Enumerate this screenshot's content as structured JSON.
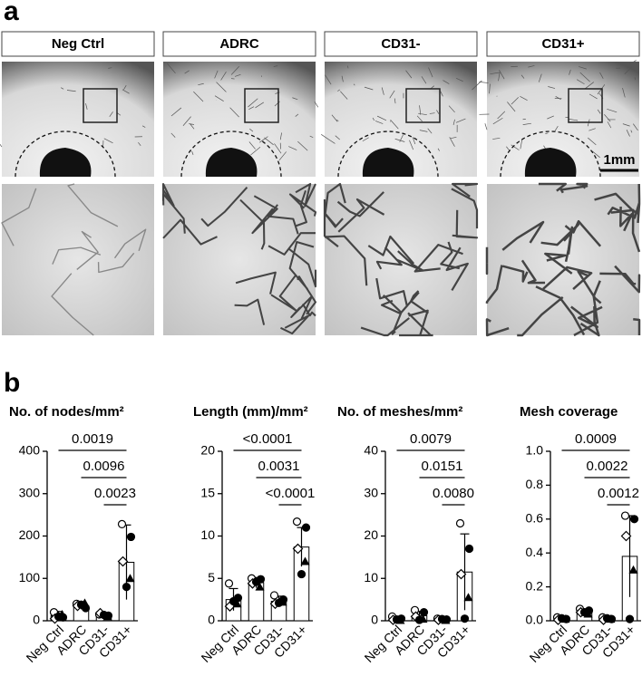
{
  "panel_labels": [
    "a",
    "b"
  ],
  "image_panel": {
    "groups": [
      "Neg Ctrl",
      "ADRC",
      "CD31-",
      "CD31+"
    ],
    "scale_bar": "1mm"
  },
  "chart_data": [
    {
      "type": "bar",
      "title": "No. of nodes/mm²",
      "categories": [
        "Neg Ctrl",
        "ADRC",
        "CD31-",
        "CD31+"
      ],
      "values": [
        12,
        35,
        15,
        138
      ],
      "errors": [
        10,
        8,
        5,
        88
      ],
      "points": [
        [
          20,
          8,
          5,
          15,
          10
        ],
        [
          40,
          30,
          35,
          42,
          38
        ],
        [
          15,
          12,
          18,
          10,
          14
        ],
        [
          228,
          198,
          140,
          100,
          80
        ]
      ],
      "ylim": [
        0,
        400
      ],
      "yticks": [
        0,
        100,
        200,
        300,
        400
      ],
      "annotations": [
        "0.0019",
        "0.0096",
        "0.0023"
      ]
    },
    {
      "type": "bar",
      "title": "Length (mm)/mm²",
      "categories": [
        "Neg Ctrl",
        "ADRC",
        "CD31-",
        "CD31+"
      ],
      "values": [
        2.5,
        4.5,
        2.3,
        8.7
      ],
      "errors": [
        1.3,
        0.6,
        0.6,
        2.3
      ],
      "points": [
        [
          4.4,
          2.7,
          1.7,
          2.0,
          2.3
        ],
        [
          5.0,
          4.9,
          4.4,
          4.0,
          4.6
        ],
        [
          3.0,
          2.5,
          2.0,
          2.2,
          2.1
        ],
        [
          11.7,
          11.0,
          8.5,
          7.0,
          5.5
        ]
      ],
      "ylim": [
        0,
        20
      ],
      "yticks": [
        0,
        5,
        10,
        15,
        20
      ],
      "annotations": [
        "<0.0001",
        "0.0031",
        "<0.0001"
      ]
    },
    {
      "type": "bar",
      "title": "No. of meshes/mm²",
      "categories": [
        "Neg Ctrl",
        "ADRC",
        "CD31-",
        "CD31+"
      ],
      "values": [
        0.4,
        1.2,
        0.3,
        11.5
      ],
      "errors": [
        0.5,
        1.0,
        0.3,
        9
      ],
      "points": [
        [
          1.0,
          0.5,
          0.2,
          0.1,
          0.3
        ],
        [
          2.5,
          2.0,
          1.0,
          0.4,
          0.2
        ],
        [
          0.5,
          0.3,
          0.2,
          0.1,
          0.4
        ],
        [
          23,
          17,
          11,
          5.5,
          0.5
        ]
      ],
      "ylim": [
        0,
        40
      ],
      "yticks": [
        0,
        10,
        20,
        30,
        40
      ],
      "annotations": [
        "0.0079",
        "0.0151",
        "0.0080"
      ]
    },
    {
      "type": "bar",
      "title": "Mesh coverage",
      "categories": [
        "Neg Ctrl",
        "ADRC",
        "CD31-",
        "CD31+"
      ],
      "values": [
        0.01,
        0.05,
        0.01,
        0.38
      ],
      "errors": [
        0.01,
        0.02,
        0.01,
        0.24
      ],
      "points": [
        [
          0.02,
          0.01,
          0.005,
          0.01,
          0.015
        ],
        [
          0.07,
          0.06,
          0.05,
          0.04,
          0.05
        ],
        [
          0.02,
          0.01,
          0.005,
          0.01,
          0.015
        ],
        [
          0.62,
          0.6,
          0.5,
          0.3,
          0.01
        ]
      ],
      "ylim": [
        0,
        1.0
      ],
      "yticks": [
        {
          "value": 0,
          "label": "0.0"
        },
        0.2,
        0.4,
        0.6,
        0.8,
        {
          "value": 1.0,
          "label": "1.0"
        }
      ],
      "annotations": [
        "0.0009",
        "0.0022",
        "0.0012"
      ]
    }
  ]
}
